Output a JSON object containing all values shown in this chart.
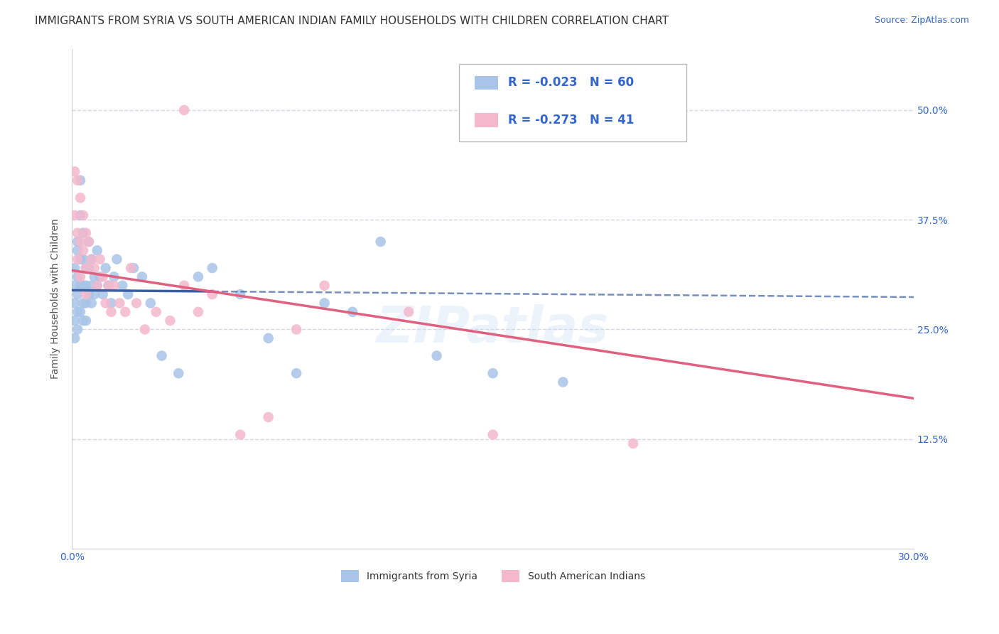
{
  "title": "IMMIGRANTS FROM SYRIA VS SOUTH AMERICAN INDIAN FAMILY HOUSEHOLDS WITH CHILDREN CORRELATION CHART",
  "source": "Source: ZipAtlas.com",
  "ylabel": "Family Households with Children",
  "ytick_labels": [
    "50.0%",
    "37.5%",
    "25.0%",
    "12.5%"
  ],
  "ytick_values": [
    0.5,
    0.375,
    0.25,
    0.125
  ],
  "xmin": 0.0,
  "xmax": 0.3,
  "ymin": 0.0,
  "ymax": 0.57,
  "syria_r": -0.023,
  "syria_n": 60,
  "sam_r": -0.273,
  "sam_n": 41,
  "syria_color": "#a8c4e8",
  "sam_color": "#f4b8cc",
  "syria_line_color": "#3a5fa0",
  "sam_line_color": "#e06080",
  "grid_color": "#d0d8e8",
  "background_color": "#ffffff",
  "title_fontsize": 11,
  "axis_label_fontsize": 10,
  "tick_fontsize": 10,
  "source_fontsize": 9,
  "syria_points_x": [
    0.001,
    0.001,
    0.001,
    0.001,
    0.001,
    0.002,
    0.002,
    0.002,
    0.002,
    0.002,
    0.002,
    0.003,
    0.003,
    0.003,
    0.003,
    0.003,
    0.004,
    0.004,
    0.004,
    0.004,
    0.004,
    0.005,
    0.005,
    0.005,
    0.005,
    0.006,
    0.006,
    0.006,
    0.007,
    0.007,
    0.007,
    0.008,
    0.008,
    0.009,
    0.009,
    0.01,
    0.011,
    0.012,
    0.013,
    0.014,
    0.015,
    0.016,
    0.018,
    0.02,
    0.022,
    0.025,
    0.028,
    0.032,
    0.038,
    0.045,
    0.05,
    0.06,
    0.07,
    0.08,
    0.09,
    0.1,
    0.11,
    0.13,
    0.15,
    0.175
  ],
  "syria_points_y": [
    0.3,
    0.32,
    0.28,
    0.26,
    0.24,
    0.34,
    0.31,
    0.29,
    0.27,
    0.25,
    0.35,
    0.42,
    0.38,
    0.33,
    0.3,
    0.27,
    0.36,
    0.33,
    0.3,
    0.28,
    0.26,
    0.32,
    0.3,
    0.28,
    0.26,
    0.35,
    0.32,
    0.29,
    0.33,
    0.3,
    0.28,
    0.31,
    0.29,
    0.34,
    0.3,
    0.31,
    0.29,
    0.32,
    0.3,
    0.28,
    0.31,
    0.33,
    0.3,
    0.29,
    0.32,
    0.31,
    0.28,
    0.22,
    0.2,
    0.31,
    0.32,
    0.29,
    0.24,
    0.2,
    0.28,
    0.27,
    0.35,
    0.22,
    0.2,
    0.19
  ],
  "sam_points_x": [
    0.001,
    0.001,
    0.002,
    0.002,
    0.002,
    0.003,
    0.003,
    0.003,
    0.004,
    0.004,
    0.005,
    0.005,
    0.005,
    0.006,
    0.007,
    0.008,
    0.009,
    0.01,
    0.011,
    0.012,
    0.013,
    0.014,
    0.015,
    0.017,
    0.019,
    0.021,
    0.023,
    0.026,
    0.03,
    0.035,
    0.04,
    0.045,
    0.05,
    0.06,
    0.07,
    0.08,
    0.09,
    0.12,
    0.15,
    0.2,
    0.04
  ],
  "sam_points_y": [
    0.43,
    0.38,
    0.42,
    0.36,
    0.33,
    0.4,
    0.35,
    0.31,
    0.38,
    0.34,
    0.36,
    0.32,
    0.29,
    0.35,
    0.33,
    0.32,
    0.3,
    0.33,
    0.31,
    0.28,
    0.3,
    0.27,
    0.3,
    0.28,
    0.27,
    0.32,
    0.28,
    0.25,
    0.27,
    0.26,
    0.3,
    0.27,
    0.29,
    0.13,
    0.15,
    0.25,
    0.3,
    0.27,
    0.13,
    0.12,
    0.5
  ],
  "legend_r_syria": "R = -0.023",
  "legend_n_syria": "N = 60",
  "legend_r_sam": "R = -0.273",
  "legend_n_sam": "N = 41",
  "legend_label_syria": "Immigrants from Syria",
  "legend_label_sam": "South American Indians"
}
